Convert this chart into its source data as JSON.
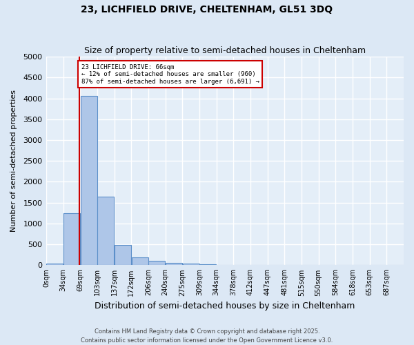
{
  "title1": "23, LICHFIELD DRIVE, CHELTENHAM, GL51 3DQ",
  "title2": "Size of property relative to semi-detached houses in Cheltenham",
  "xlabel": "Distribution of semi-detached houses by size in Cheltenham",
  "ylabel": "Number of semi-detached properties",
  "bin_labels": [
    "0sqm",
    "34sqm",
    "69sqm",
    "103sqm",
    "137sqm",
    "172sqm",
    "206sqm",
    "240sqm",
    "275sqm",
    "309sqm",
    "344sqm",
    "378sqm",
    "412sqm",
    "447sqm",
    "481sqm",
    "515sqm",
    "550sqm",
    "584sqm",
    "618sqm",
    "653sqm",
    "687sqm"
  ],
  "bar_values": [
    30,
    1250,
    4050,
    1640,
    490,
    190,
    110,
    55,
    35,
    20,
    8,
    5,
    3,
    2,
    1,
    1,
    0,
    0,
    0,
    0,
    0
  ],
  "bar_color": "#aec6e8",
  "bar_edgecolor": "#5b8fc9",
  "property_value": 66,
  "annotation_title": "23 LICHFIELD DRIVE: 66sqm",
  "annotation_line1": "← 12% of semi-detached houses are smaller (960)",
  "annotation_line2": "87% of semi-detached houses are larger (6,691) →",
  "annotation_box_color": "#ffffff",
  "annotation_box_edgecolor": "#cc0000",
  "ylim": [
    0,
    5000
  ],
  "yticks": [
    0,
    500,
    1000,
    1500,
    2000,
    2500,
    3000,
    3500,
    4000,
    4500,
    5000
  ],
  "footer1": "Contains HM Land Registry data © Crown copyright and database right 2025.",
  "footer2": "Contains public sector information licensed under the Open Government Licence v3.0.",
  "bg_color": "#dce8f5",
  "plot_bg_color": "#e4eef8",
  "grid_color": "#ffffff",
  "bin_width": 34
}
